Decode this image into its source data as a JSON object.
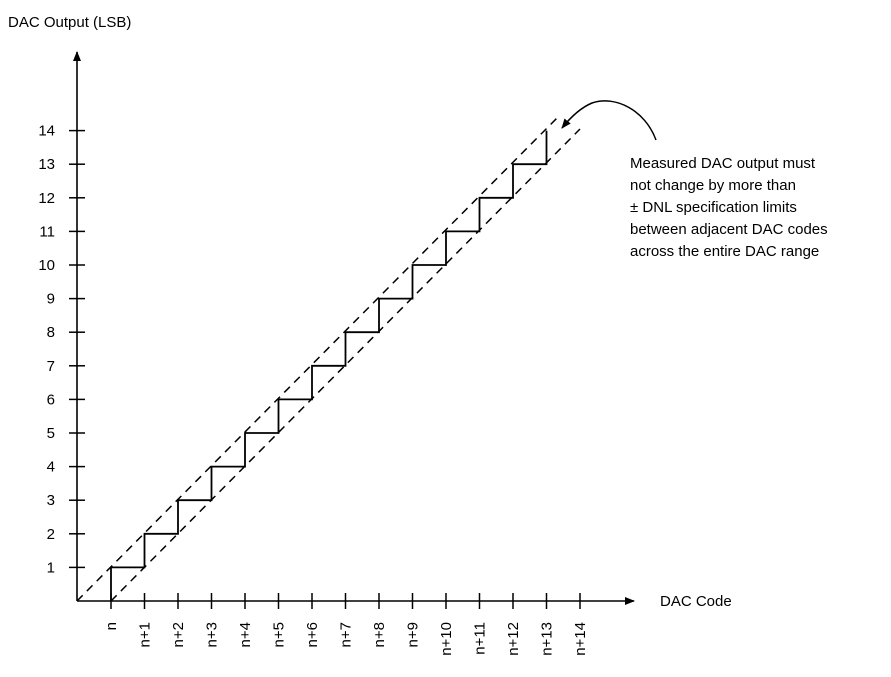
{
  "y_axis": {
    "title": "DAC Output (LSB)",
    "ticks": [
      "1",
      "2",
      "3",
      "4",
      "5",
      "6",
      "7",
      "8",
      "9",
      "10",
      "11",
      "12",
      "13",
      "14"
    ]
  },
  "x_axis": {
    "title": "DAC Code",
    "ticks": [
      "n",
      "n+1",
      "n+2",
      "n+3",
      "n+4",
      "n+5",
      "n+6",
      "n+7",
      "n+8",
      "n+9",
      "n+10",
      "n+11",
      "n+12",
      "n+13",
      "n+14"
    ]
  },
  "annotation": {
    "lines": [
      "Measured DAC output must",
      "not change by more than",
      "± DNL specification limits",
      "between adjacent DAC codes",
      "across the entire DAC range"
    ]
  },
  "staircase": {
    "description_levels": [
      1,
      2,
      3,
      4,
      5,
      6,
      7,
      8,
      9,
      10,
      11,
      12,
      13,
      14
    ]
  },
  "colors": {
    "line": "#000000",
    "background": "#ffffff"
  }
}
